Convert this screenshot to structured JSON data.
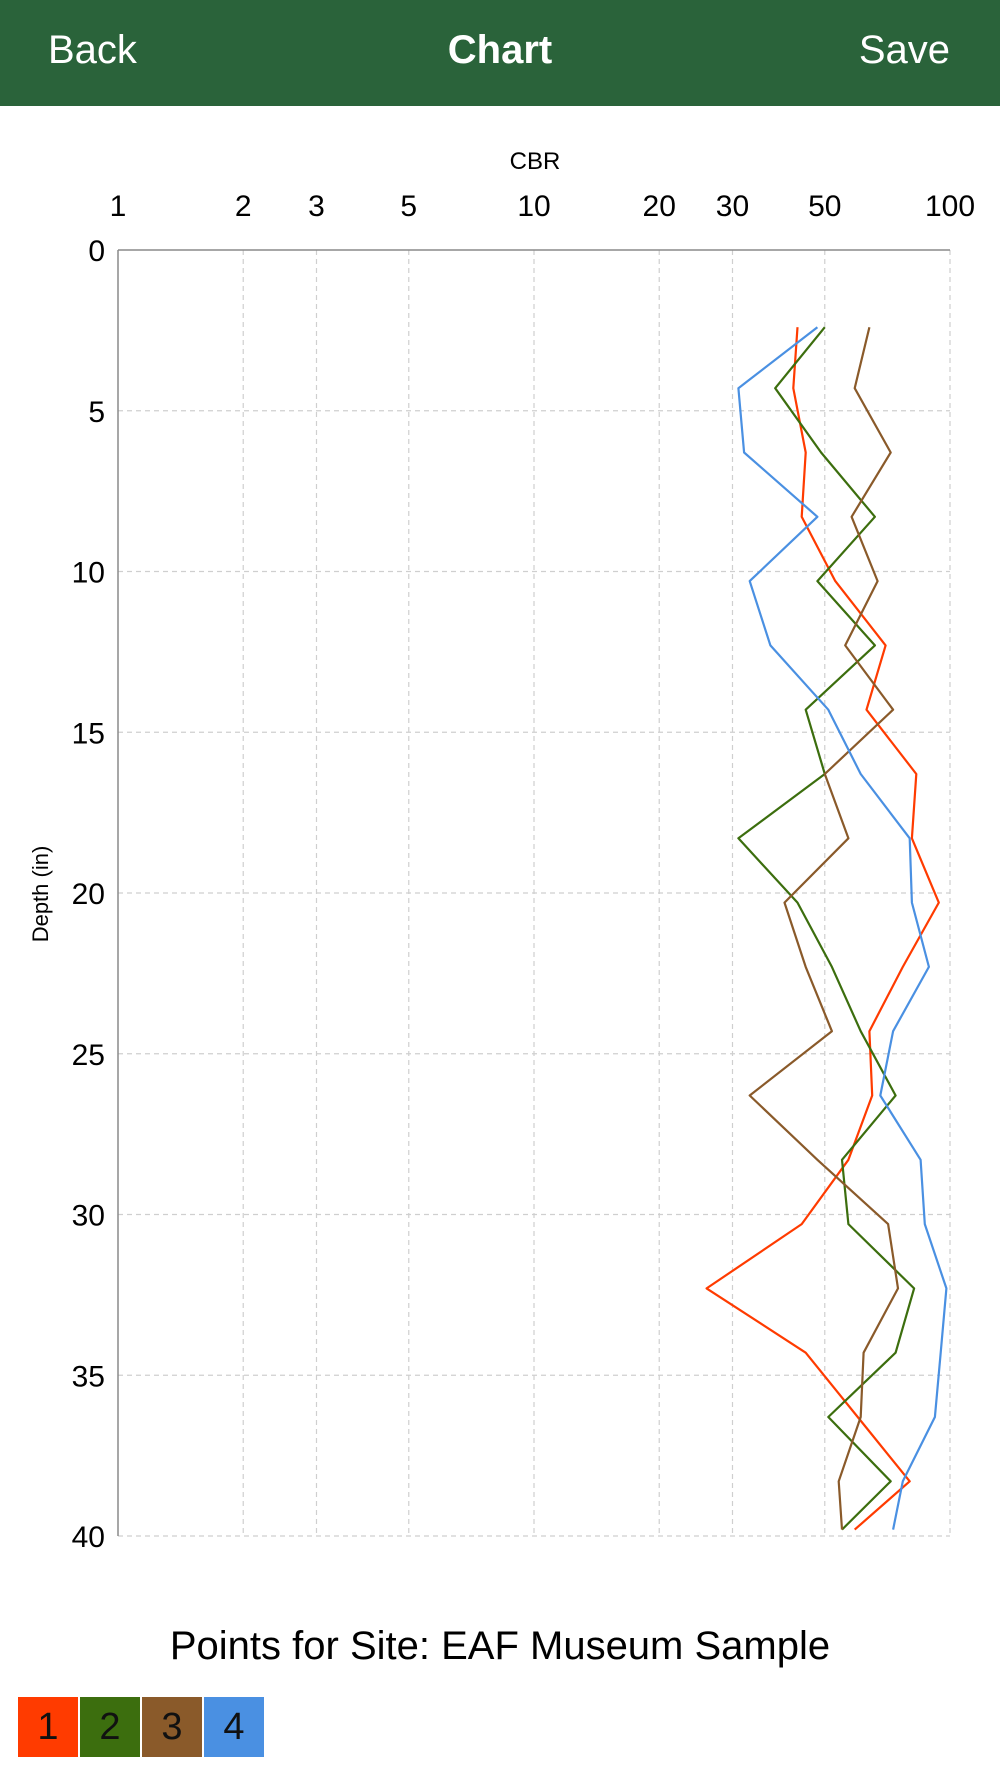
{
  "nav": {
    "back_label": "Back",
    "title": "Chart",
    "save_label": "Save"
  },
  "site_title": "Points for Site: EAF Museum Sample",
  "chart_data": {
    "type": "line",
    "xlabel": "CBR",
    "ylabel": "Depth (in)",
    "x_scale": "log",
    "xlim": [
      1,
      100
    ],
    "ylim": [
      0,
      40
    ],
    "y_inverted": true,
    "x_ticks": [
      1,
      2,
      3,
      5,
      10,
      20,
      30,
      50,
      100
    ],
    "y_ticks": [
      0,
      5,
      10,
      15,
      20,
      25,
      30,
      35,
      40
    ],
    "grid": true,
    "series": [
      {
        "name": "1",
        "color": "#ff3b00",
        "points": [
          [
            43,
            2.4
          ],
          [
            42,
            4.3
          ],
          [
            45,
            6.3
          ],
          [
            44,
            8.3
          ],
          [
            53,
            10.3
          ],
          [
            70,
            12.3
          ],
          [
            63,
            14.3
          ],
          [
            83,
            16.3
          ],
          [
            81,
            18.3
          ],
          [
            94,
            20.3
          ],
          [
            77,
            22.3
          ],
          [
            64,
            24.3
          ],
          [
            65,
            26.3
          ],
          [
            57,
            28.3
          ],
          [
            44,
            30.3
          ],
          [
            26,
            32.3
          ],
          [
            45,
            34.3
          ],
          [
            60,
            36.3
          ],
          [
            80,
            38.3
          ],
          [
            59,
            39.8
          ]
        ]
      },
      {
        "name": "2",
        "color": "#3c6e0e",
        "points": [
          [
            50,
            2.4
          ],
          [
            38,
            4.3
          ],
          [
            49,
            6.3
          ],
          [
            66,
            8.3
          ],
          [
            48,
            10.3
          ],
          [
            66,
            12.3
          ],
          [
            45,
            14.3
          ],
          [
            50,
            16.3
          ],
          [
            31,
            18.3
          ],
          [
            43,
            20.3
          ],
          [
            52,
            22.3
          ],
          [
            61,
            24.3
          ],
          [
            74,
            26.3
          ],
          [
            55,
            28.3
          ],
          [
            57,
            30.3
          ],
          [
            82,
            32.3
          ],
          [
            74,
            34.3
          ],
          [
            51,
            36.3
          ],
          [
            72,
            38.3
          ],
          [
            55,
            39.8
          ]
        ]
      },
      {
        "name": "3",
        "color": "#8a5a2a",
        "points": [
          [
            64,
            2.4
          ],
          [
            59,
            4.3
          ],
          [
            72,
            6.3
          ],
          [
            58,
            8.3
          ],
          [
            67,
            10.3
          ],
          [
            56,
            12.3
          ],
          [
            73,
            14.3
          ],
          [
            50,
            16.3
          ],
          [
            57,
            18.3
          ],
          [
            40,
            20.3
          ],
          [
            45,
            22.3
          ],
          [
            52,
            24.3
          ],
          [
            33,
            26.3
          ],
          [
            48,
            28.3
          ],
          [
            71,
            30.3
          ],
          [
            75,
            32.3
          ],
          [
            62,
            34.3
          ],
          [
            61,
            36.3
          ],
          [
            54,
            38.3
          ],
          [
            55,
            39.8
          ]
        ]
      },
      {
        "name": "4",
        "color": "#4a90e2",
        "points": [
          [
            48,
            2.4
          ],
          [
            31,
            4.3
          ],
          [
            32,
            6.3
          ],
          [
            48,
            8.3
          ],
          [
            33,
            10.3
          ],
          [
            37,
            12.3
          ],
          [
            51,
            14.3
          ],
          [
            61,
            16.3
          ],
          [
            80,
            18.3
          ],
          [
            81,
            20.3
          ],
          [
            89,
            22.3
          ],
          [
            73,
            24.3
          ],
          [
            68,
            26.3
          ],
          [
            85,
            28.3
          ],
          [
            87,
            30.3
          ],
          [
            98,
            32.3
          ],
          [
            95,
            34.3
          ],
          [
            92,
            36.3
          ],
          [
            77,
            38.3
          ],
          [
            73,
            39.8
          ]
        ]
      }
    ]
  }
}
